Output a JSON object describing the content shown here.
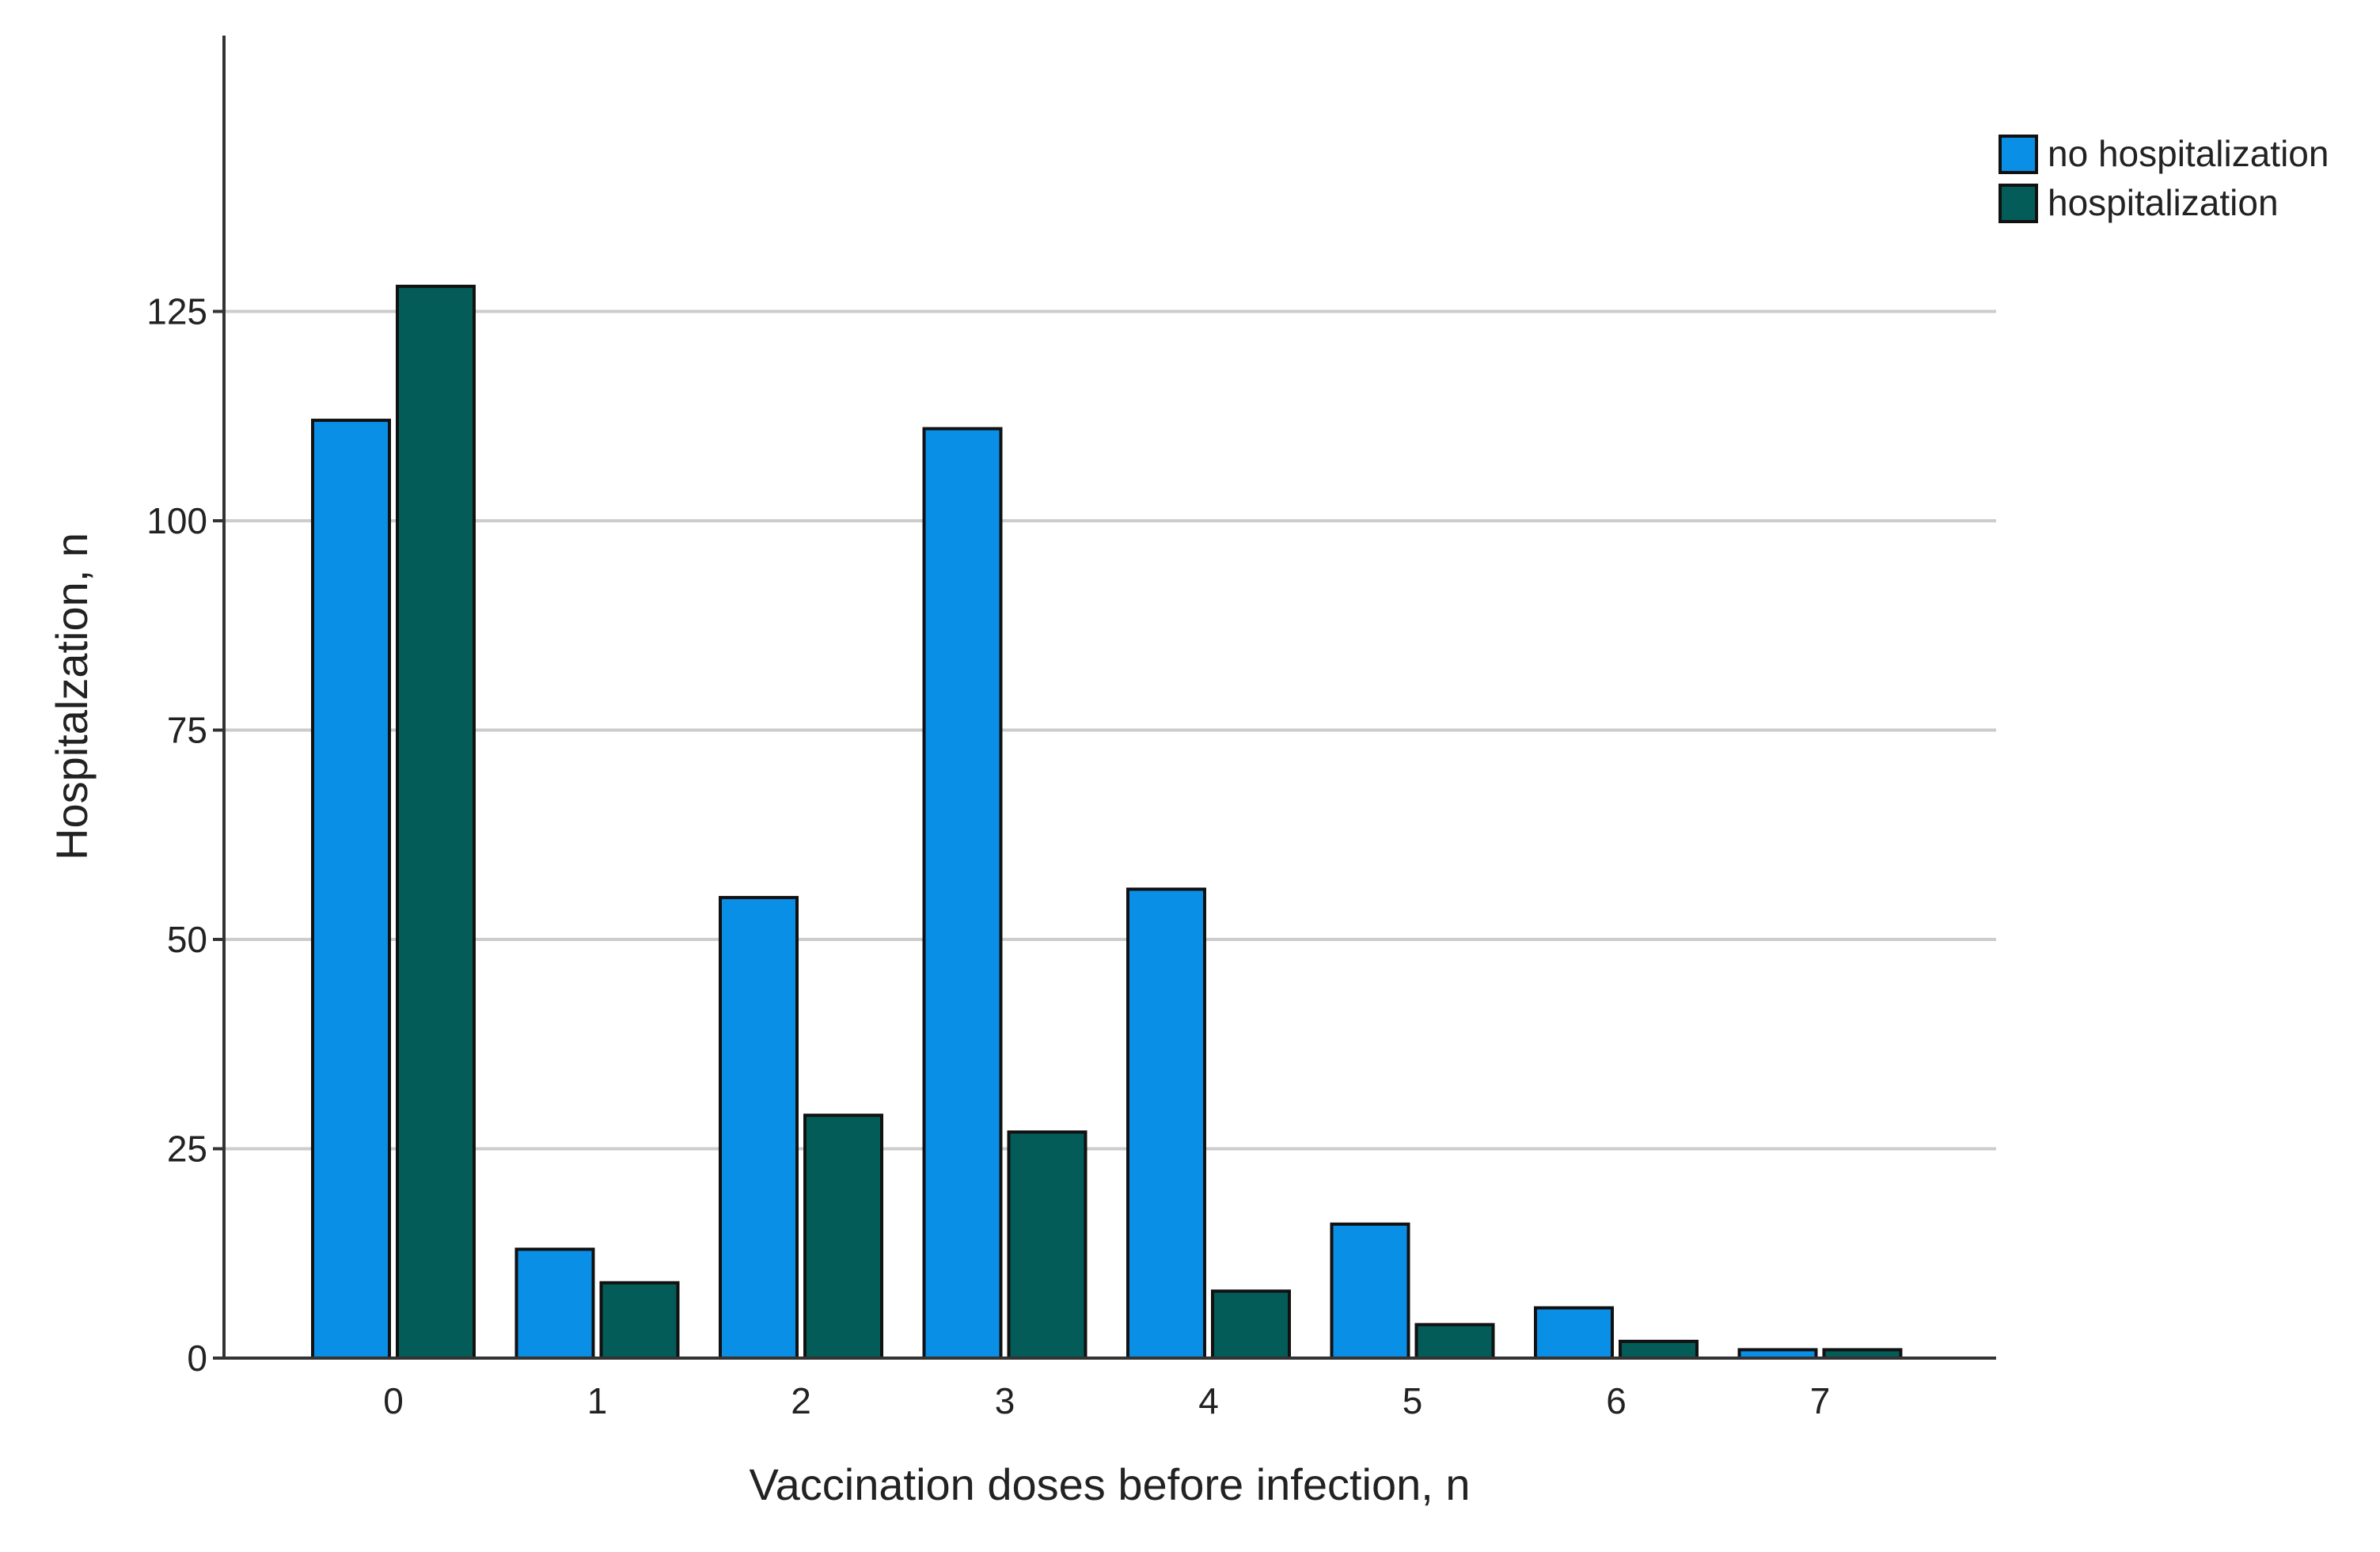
{
  "chart_data": {
    "type": "bar",
    "title": "",
    "xlabel": "Vaccination doses before infection, n",
    "ylabel": "Hospitalzation, n",
    "categories": [
      "0",
      "1",
      "2",
      "3",
      "4",
      "5",
      "6",
      "7"
    ],
    "series": [
      {
        "name": "no hospitalization",
        "color": "#0a8fe6",
        "values": [
          112,
          13,
          55,
          111,
          56,
          16,
          6,
          1
        ]
      },
      {
        "name": "hospitalization",
        "color": "#035c58",
        "values": [
          128,
          9,
          29,
          27,
          8,
          4,
          2,
          1
        ]
      }
    ],
    "ylim": [
      0,
      150
    ],
    "yticks": [
      0,
      25,
      50,
      75,
      100,
      125
    ],
    "grid": true,
    "legend_position": "top-right"
  }
}
